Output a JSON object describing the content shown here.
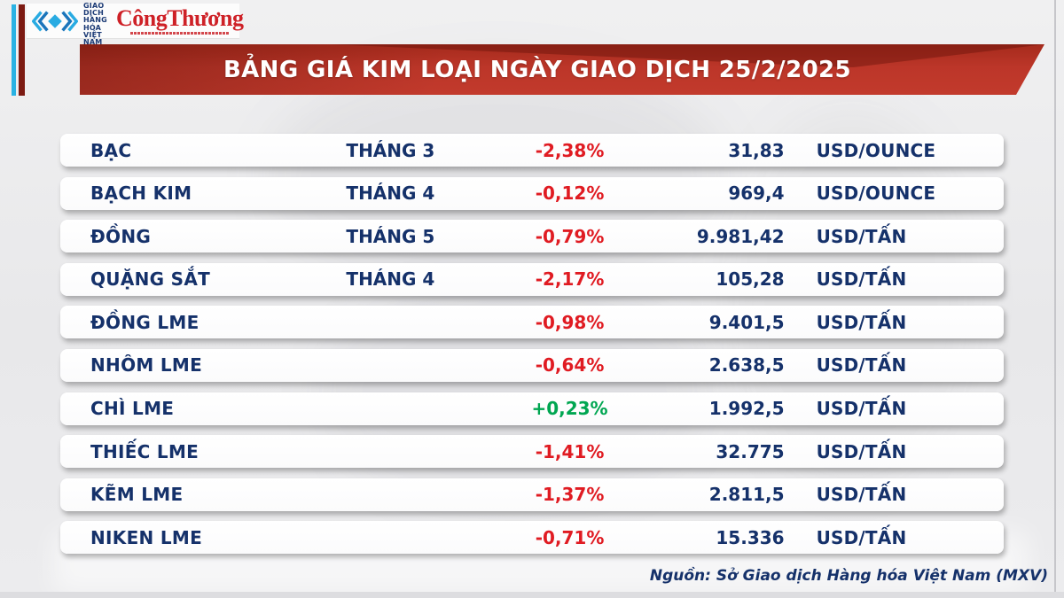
{
  "header": {
    "mxv_lines": [
      "SỞ GIAO DỊCH",
      "HÀNG HÓA",
      "VIỆT NAM"
    ],
    "congthuong": "CôngThương",
    "banner_title": "BẢNG GIÁ KIM LOẠI NGÀY GIAO DỊCH 25/2/2025"
  },
  "table": {
    "rows": [
      {
        "name": "BẠC",
        "month": "THÁNG 3",
        "change": "-2,38%",
        "direction": "down",
        "price": "31,83",
        "unit": "USD/OUNCE"
      },
      {
        "name": "BẠCH KIM",
        "month": "THÁNG 4",
        "change": "-0,12%",
        "direction": "down",
        "price": "969,4",
        "unit": "USD/OUNCE"
      },
      {
        "name": "ĐỒNG",
        "month": "THÁNG 5",
        "change": "-0,79%",
        "direction": "down",
        "price": "9.981,42",
        "unit": "USD/TẤN"
      },
      {
        "name": "QUẶNG SẮT",
        "month": "THÁNG 4",
        "change": "-2,17%",
        "direction": "down",
        "price": "105,28",
        "unit": "USD/TẤN"
      },
      {
        "name": "ĐỒNG LME",
        "month": "",
        "change": "-0,98%",
        "direction": "down",
        "price": "9.401,5",
        "unit": "USD/TẤN"
      },
      {
        "name": "NHÔM LME",
        "month": "",
        "change": "-0,64%",
        "direction": "down",
        "price": "2.638,5",
        "unit": "USD/TẤN"
      },
      {
        "name": "CHÌ LME",
        "month": "",
        "change": "+0,23%",
        "direction": "up",
        "price": "1.992,5",
        "unit": "USD/TẤN"
      },
      {
        "name": "THIẾC LME",
        "month": "",
        "change": "-1,41%",
        "direction": "down",
        "price": "32.775",
        "unit": "USD/TẤN"
      },
      {
        "name": "KẼM LME",
        "month": "",
        "change": "-1,37%",
        "direction": "down",
        "price": "2.811,5",
        "unit": "USD/TẤN"
      },
      {
        "name": "NIKEN LME",
        "month": "",
        "change": "-0,71%",
        "direction": "down",
        "price": "15.336",
        "unit": "USD/TẤN"
      }
    ]
  },
  "footer": {
    "source": "Nguồn: Sở Giao dịch Hàng hóa Việt Nam (MXV)"
  },
  "colors": {
    "navy_text": "#15316a",
    "down_red": "#e01b22",
    "up_green": "#00a651",
    "banner_red": "#bc3629",
    "accent_cyan": "#2ab2e3",
    "accent_maroon": "#7c1a12",
    "background": "#e8e8ea",
    "row_background": "#ffffff"
  },
  "chart_data": {
    "type": "table",
    "title": "BẢNG GIÁ KIM LOẠI NGÀY GIAO DỊCH 25/2/2025",
    "columns": [
      "commodity",
      "contract_month",
      "change_percent",
      "price",
      "unit"
    ],
    "rows": [
      [
        "BẠC",
        "THÁNG 3",
        "-2,38%",
        "31,83",
        "USD/OUNCE"
      ],
      [
        "BẠCH KIM",
        "THÁNG 4",
        "-0,12%",
        "969,4",
        "USD/OUNCE"
      ],
      [
        "ĐỒNG",
        "THÁNG 5",
        "-0,79%",
        "9.981,42",
        "USD/TẤN"
      ],
      [
        "QUẶNG SẮT",
        "THÁNG 4",
        "-2,17%",
        "105,28",
        "USD/TẤN"
      ],
      [
        "ĐỒNG LME",
        "",
        "-0,98%",
        "9.401,5",
        "USD/TẤN"
      ],
      [
        "NHÔM LME",
        "",
        "-0,64%",
        "2.638,5",
        "USD/TẤN"
      ],
      [
        "CHÌ LME",
        "",
        "+0,23%",
        "1.992,5",
        "USD/TẤN"
      ],
      [
        "THIẾC LME",
        "",
        "-1,41%",
        "32.775",
        "USD/TẤN"
      ],
      [
        "KẼM LME",
        "",
        "-1,37%",
        "2.811,5",
        "USD/TẤN"
      ],
      [
        "NIKEN LME",
        "",
        "-0,71%",
        "15.336",
        "USD/TẤN"
      ]
    ],
    "source_note": "Nguồn: Sở Giao dịch Hàng hóa Việt Nam (MXV)"
  }
}
